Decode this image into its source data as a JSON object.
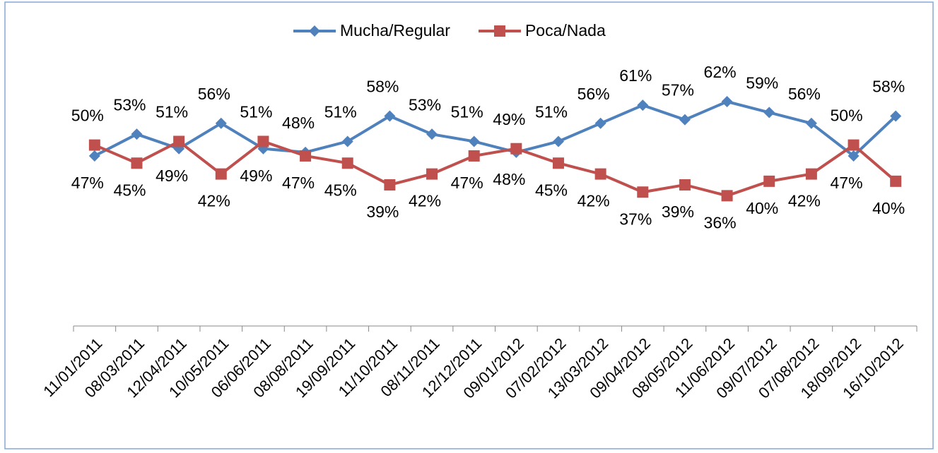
{
  "chart_data": {
    "type": "line",
    "categories": [
      "11/01/2011",
      "08/03/2011",
      "12/04/2011",
      "10/05/2011",
      "06/06/2011",
      "08/08/2011",
      "19/09/2011",
      "11/10/2011",
      "08/11/2011",
      "12/12/2011",
      "09/01/2012",
      "07/02/2012",
      "13/03/2012",
      "09/04/2012",
      "08/05/2012",
      "11/06/2012",
      "09/07/2012",
      "07/08/2012",
      "18/09/2012",
      "16/10/2012"
    ],
    "series": [
      {
        "name": "Mucha/Regular",
        "color": "#4f81bd",
        "marker": "diamond",
        "values": [
          47,
          53,
          49,
          56,
          49,
          48,
          51,
          58,
          53,
          51,
          48,
          51,
          56,
          61,
          57,
          62,
          59,
          56,
          47,
          58
        ],
        "value_labels": [
          "47%",
          "53%",
          "49%",
          "56%",
          "49%",
          "48%",
          "51%",
          "58%",
          "53%",
          "51%",
          "48%",
          "51%",
          "56%",
          "61%",
          "57%",
          "62%",
          "59%",
          "56%",
          "47%",
          "58%"
        ]
      },
      {
        "name": "Poca/Nada",
        "color": "#c0504d",
        "marker": "square",
        "values": [
          50,
          45,
          51,
          42,
          51,
          47,
          45,
          39,
          42,
          47,
          49,
          45,
          42,
          37,
          39,
          36,
          40,
          42,
          50,
          40
        ],
        "value_labels": [
          "50%",
          "45%",
          "51%",
          "42%",
          "51%",
          "47%",
          "45%",
          "39%",
          "42%",
          "47%",
          "49%",
          "45%",
          "42%",
          "37%",
          "39%",
          "36%",
          "40%",
          "42%",
          "50%",
          "40%"
        ]
      }
    ],
    "ylim": [
      0,
      70
    ],
    "legend": "top"
  }
}
